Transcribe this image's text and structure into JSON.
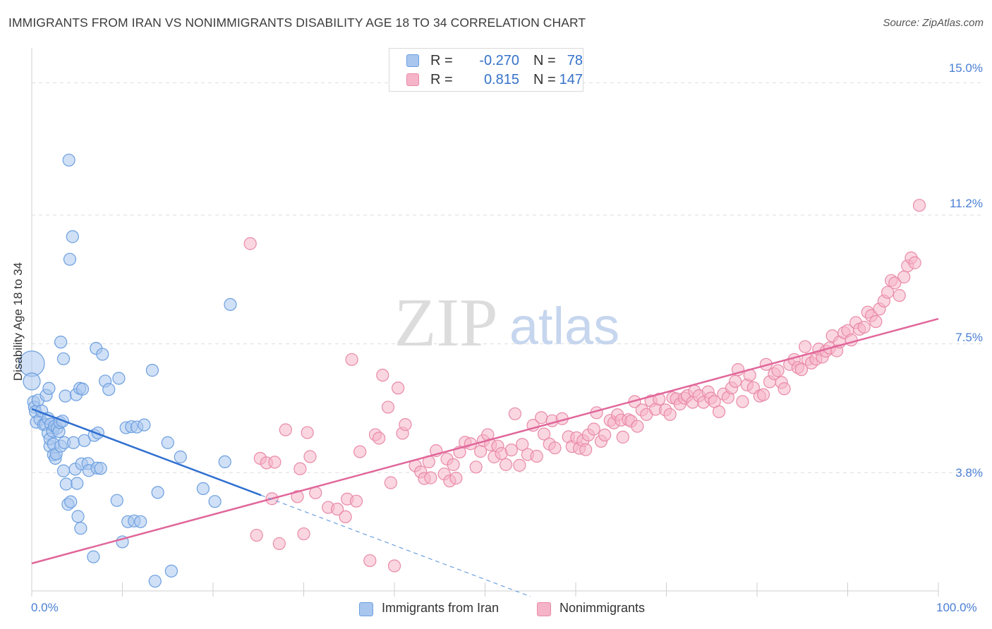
{
  "title": "IMMIGRANTS FROM IRAN VS NONIMMIGRANTS DISABILITY AGE 18 TO 34 CORRELATION CHART",
  "source": "Source: ZipAtlas.com",
  "watermark": {
    "zip": "ZIP",
    "atlas": "atlas"
  },
  "stats": {
    "series1": {
      "r_label": "R =",
      "r_value": "-0.270",
      "n_label": "N =",
      "n_value": "78"
    },
    "series2": {
      "r_label": "R =",
      "r_value": "0.815",
      "n_label": "N =",
      "n_value": "147"
    }
  },
  "legend": {
    "series1": "Immigrants from Iran",
    "series2": "Nonimmigrants"
  },
  "colors": {
    "blue_fill": "#a9c6ee",
    "blue_stroke": "#6c9fe0",
    "blue_line": "#2f6fd0",
    "pink_fill": "#f5b4c8",
    "pink_stroke": "#e98aa8",
    "pink_line": "#e0679a",
    "tick_text": "#4a7fd4",
    "grid": "#dedede"
  },
  "chart_data": {
    "type": "scatter",
    "title": "IMMIGRANTS FROM IRAN VS NONIMMIGRANTS DISABILITY AGE 18 TO 34 CORRELATION CHART",
    "xlabel": "",
    "ylabel": "Disability Age 18 to 34",
    "xlim": [
      0,
      100
    ],
    "ylim": [
      0.4,
      15.8
    ],
    "x_tick_labels": [
      "0.0%",
      "100.0%"
    ],
    "y_ticks": [
      3.8,
      7.5,
      11.2,
      15.0
    ],
    "y_tick_labels": [
      "3.8%",
      "7.5%",
      "11.2%",
      "15.0%"
    ],
    "grid": true,
    "legend_position": "bottom",
    "series": [
      {
        "name": "Immigrants from Iran",
        "color": "blue",
        "trend": {
          "x": [
            0,
            25.3
          ],
          "y": [
            5.63,
            3.15
          ]
        },
        "trend_dashed": {
          "x": [
            25.3,
            55
          ],
          "y": [
            3.15,
            0.24
          ]
        },
        "points": [
          [
            0,
            6.93,
            "L"
          ],
          [
            0,
            6.42,
            "M"
          ],
          [
            0.2,
            5.83
          ],
          [
            0.3,
            5.68
          ],
          [
            0.4,
            5.55
          ],
          [
            0.5,
            5.25
          ],
          [
            0.7,
            5.88
          ],
          [
            0.9,
            5.33
          ],
          [
            1.1,
            5.57
          ],
          [
            1.3,
            5.18
          ],
          [
            1.5,
            5.19
          ],
          [
            1.6,
            6.02
          ],
          [
            1.8,
            5.36
          ],
          [
            1.8,
            4.93
          ],
          [
            1.9,
            6.22
          ],
          [
            2.0,
            4.56
          ],
          [
            2.0,
            4.77
          ],
          [
            2.1,
            5.19
          ],
          [
            2.3,
            4.99
          ],
          [
            2.4,
            4.31
          ],
          [
            2.4,
            4.62
          ],
          [
            2.5,
            5.13
          ],
          [
            2.6,
            4.21
          ],
          [
            2.7,
            4.34
          ],
          [
            2.8,
            5.08
          ],
          [
            3.0,
            4.98
          ],
          [
            3.1,
            5.24
          ],
          [
            3.2,
            7.55
          ],
          [
            3.2,
            4.56
          ],
          [
            3.4,
            5.28
          ],
          [
            3.5,
            7.07
          ],
          [
            3.5,
            3.85
          ],
          [
            3.6,
            4.66
          ],
          [
            3.7,
            6.0
          ],
          [
            3.8,
            3.47
          ],
          [
            4.0,
            2.89
          ],
          [
            4.1,
            12.78
          ],
          [
            4.2,
            9.93
          ],
          [
            4.3,
            2.96
          ],
          [
            4.5,
            10.58
          ],
          [
            4.6,
            4.66
          ],
          [
            4.8,
            3.9
          ],
          [
            4.9,
            6.04
          ],
          [
            5.0,
            3.49
          ],
          [
            5.1,
            2.54
          ],
          [
            5.3,
            6.22
          ],
          [
            5.4,
            2.2
          ],
          [
            5.5,
            4.05
          ],
          [
            5.6,
            6.2
          ],
          [
            5.8,
            4.72
          ],
          [
            6.2,
            4.06
          ],
          [
            6.3,
            3.86
          ],
          [
            6.8,
            1.38
          ],
          [
            6.9,
            4.87
          ],
          [
            7.1,
            7.37
          ],
          [
            7.2,
            3.93
          ],
          [
            7.3,
            4.94
          ],
          [
            7.6,
            3.92
          ],
          [
            7.8,
            7.2
          ],
          [
            8.1,
            6.43
          ],
          [
            8.5,
            6.19
          ],
          [
            9.4,
            3.0
          ],
          [
            9.6,
            6.51
          ],
          [
            10.0,
            1.81
          ],
          [
            10.4,
            5.09
          ],
          [
            10.6,
            2.39
          ],
          [
            11.0,
            5.12
          ],
          [
            11.3,
            2.41
          ],
          [
            11.6,
            5.11
          ],
          [
            12.0,
            2.39
          ],
          [
            12.4,
            5.17
          ],
          [
            13.3,
            6.74
          ],
          [
            13.6,
            0.68
          ],
          [
            13.9,
            3.23
          ],
          [
            15.0,
            4.66
          ],
          [
            15.4,
            0.97
          ],
          [
            16.4,
            4.25
          ],
          [
            18.9,
            3.34
          ],
          [
            20.2,
            2.97
          ],
          [
            21.3,
            4.11
          ],
          [
            21.9,
            8.63
          ]
        ]
      },
      {
        "name": "Nonimmigrants",
        "color": "pink",
        "trend": {
          "x": [
            0,
            100
          ],
          "y": [
            1.19,
            8.22
          ]
        },
        "points": [
          [
            24.1,
            10.38
          ],
          [
            24.8,
            2.0
          ],
          [
            25.2,
            4.21
          ],
          [
            25.9,
            4.08
          ],
          [
            26.5,
            3.05
          ],
          [
            26.8,
            4.1
          ],
          [
            27.3,
            1.76
          ],
          [
            28.0,
            5.03
          ],
          [
            29.3,
            3.11
          ],
          [
            29.6,
            3.91
          ],
          [
            30.0,
            2.04
          ],
          [
            30.4,
            4.95
          ],
          [
            30.7,
            4.26
          ],
          [
            31.3,
            3.22
          ],
          [
            32.7,
            2.8
          ],
          [
            33.7,
            2.75
          ],
          [
            34.6,
            2.53
          ],
          [
            34.8,
            3.04
          ],
          [
            35.3,
            7.05
          ],
          [
            35.8,
            2.98
          ],
          [
            36.2,
            4.4
          ],
          [
            37.3,
            1.27
          ],
          [
            37.9,
            4.89
          ],
          [
            38.3,
            4.79
          ],
          [
            38.7,
            6.6
          ],
          [
            39.3,
            5.68
          ],
          [
            39.6,
            3.51
          ],
          [
            40.0,
            1.12
          ],
          [
            40.4,
            6.23
          ],
          [
            40.9,
            4.93
          ],
          [
            41.2,
            5.18
          ],
          [
            42.3,
            4.0
          ],
          [
            42.9,
            3.82
          ],
          [
            43.3,
            3.63
          ],
          [
            43.8,
            4.11
          ],
          [
            44.0,
            3.65
          ],
          [
            44.6,
            4.43
          ],
          [
            45.5,
            3.76
          ],
          [
            45.8,
            4.19
          ],
          [
            46.1,
            3.56
          ],
          [
            46.5,
            4.03
          ],
          [
            46.8,
            3.64
          ],
          [
            47.2,
            4.39
          ],
          [
            47.8,
            4.67
          ],
          [
            48.4,
            4.63
          ],
          [
            49.0,
            3.96
          ],
          [
            49.5,
            4.41
          ],
          [
            49.8,
            4.72
          ],
          [
            50.3,
            4.89
          ],
          [
            50.6,
            4.6
          ],
          [
            51.0,
            4.25
          ],
          [
            51.4,
            4.56
          ],
          [
            51.8,
            4.35
          ],
          [
            52.3,
            4.03
          ],
          [
            52.9,
            4.45
          ],
          [
            53.3,
            5.49
          ],
          [
            53.8,
            4.01
          ],
          [
            54.1,
            4.61
          ],
          [
            54.7,
            4.32
          ],
          [
            55.3,
            5.16
          ],
          [
            55.7,
            4.27
          ],
          [
            56.2,
            5.38
          ],
          [
            56.5,
            4.91
          ],
          [
            57.1,
            4.62
          ],
          [
            57.4,
            5.29
          ],
          [
            57.7,
            4.51
          ],
          [
            58.5,
            5.35
          ],
          [
            59.2,
            4.83
          ],
          [
            59.6,
            4.55
          ],
          [
            60.1,
            4.8
          ],
          [
            60.4,
            4.5
          ],
          [
            60.8,
            4.72
          ],
          [
            61.1,
            4.46
          ],
          [
            61.4,
            4.88
          ],
          [
            62.0,
            5.05
          ],
          [
            62.3,
            5.52
          ],
          [
            62.8,
            4.7
          ],
          [
            63.2,
            4.88
          ],
          [
            63.8,
            5.3
          ],
          [
            64.2,
            5.23
          ],
          [
            64.6,
            5.46
          ],
          [
            65.0,
            5.31
          ],
          [
            65.2,
            4.82
          ],
          [
            65.8,
            5.32
          ],
          [
            66.1,
            5.28
          ],
          [
            66.5,
            5.84
          ],
          [
            66.8,
            5.13
          ],
          [
            67.3,
            5.6
          ],
          [
            67.8,
            5.47
          ],
          [
            68.3,
            5.86
          ],
          [
            68.8,
            5.62
          ],
          [
            69.2,
            5.91
          ],
          [
            69.9,
            5.6
          ],
          [
            70.4,
            5.47
          ],
          [
            70.7,
            5.95
          ],
          [
            71.1,
            5.92
          ],
          [
            71.5,
            5.77
          ],
          [
            72.0,
            5.94
          ],
          [
            72.3,
            6.01
          ],
          [
            72.9,
            5.82
          ],
          [
            73.1,
            6.14
          ],
          [
            73.6,
            6.01
          ],
          [
            74.1,
            5.82
          ],
          [
            74.6,
            6.12
          ],
          [
            74.9,
            5.94
          ],
          [
            75.3,
            5.84
          ],
          [
            75.8,
            5.55
          ],
          [
            76.3,
            6.06
          ],
          [
            76.8,
            5.96
          ],
          [
            77.2,
            6.23
          ],
          [
            77.6,
            6.42
          ],
          [
            77.9,
            6.76
          ],
          [
            78.4,
            5.84
          ],
          [
            78.9,
            6.32
          ],
          [
            79.2,
            6.6
          ],
          [
            79.6,
            6.24
          ],
          [
            80.3,
            6.0
          ],
          [
            80.7,
            6.04
          ],
          [
            81.0,
            6.91
          ],
          [
            81.4,
            6.41
          ],
          [
            81.9,
            6.64
          ],
          [
            82.3,
            6.73
          ],
          [
            82.7,
            6.39
          ],
          [
            83.0,
            6.21
          ],
          [
            83.6,
            6.91
          ],
          [
            84.1,
            7.05
          ],
          [
            84.5,
            6.82
          ],
          [
            84.9,
            6.76
          ],
          [
            85.3,
            7.42
          ],
          [
            85.6,
            7.05
          ],
          [
            86.0,
            6.95
          ],
          [
            86.5,
            7.06
          ],
          [
            86.8,
            7.35
          ],
          [
            87.2,
            7.12
          ],
          [
            87.6,
            7.29
          ],
          [
            88.0,
            7.38
          ],
          [
            88.3,
            7.73
          ],
          [
            88.8,
            7.3
          ],
          [
            89.1,
            7.55
          ],
          [
            89.6,
            7.82
          ],
          [
            90.0,
            7.88
          ],
          [
            90.4,
            7.61
          ],
          [
            90.9,
            8.11
          ],
          [
            91.3,
            7.92
          ],
          [
            91.8,
            7.98
          ],
          [
            92.2,
            8.41
          ],
          [
            92.6,
            8.31
          ],
          [
            93.1,
            8.14
          ],
          [
            93.5,
            8.5
          ],
          [
            94.0,
            8.73
          ],
          [
            94.4,
            8.98
          ],
          [
            94.8,
            9.32
          ],
          [
            95.2,
            9.25
          ],
          [
            95.7,
            8.89
          ],
          [
            96.2,
            9.42
          ],
          [
            96.6,
            9.74
          ],
          [
            97.0,
            9.97
          ],
          [
            97.4,
            9.83
          ],
          [
            97.9,
            11.48
          ]
        ]
      }
    ]
  }
}
